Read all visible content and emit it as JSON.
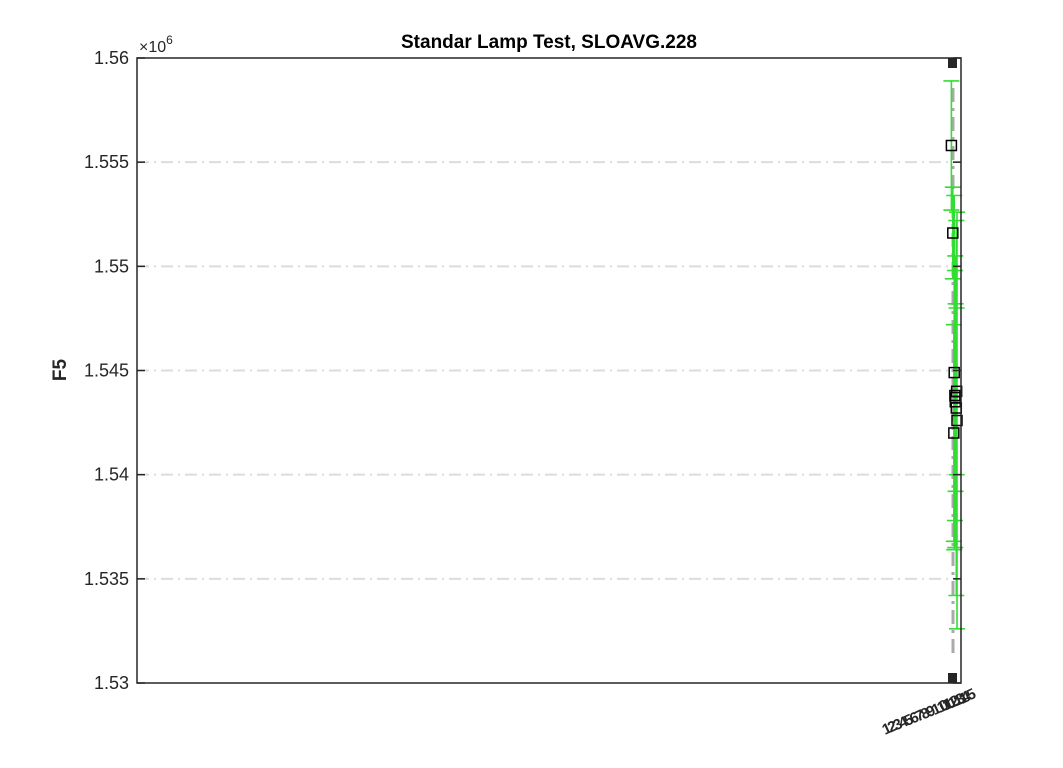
{
  "chart_data": {
    "type": "scatter",
    "title": "Standar Lamp Test, SLOAVG.228",
    "xlabel": "",
    "ylabel": "F5",
    "y_exponent_label": "×10",
    "y_exponent_power": "6",
    "ylim": [
      1.53,
      1.56
    ],
    "yticks": [
      1.53,
      1.535,
      1.54,
      1.545,
      1.55,
      1.555,
      1.56
    ],
    "ytick_labels": [
      "1.53",
      "1.535",
      "1.54",
      "1.545",
      "1.55",
      "1.555",
      "1.56"
    ],
    "xlim": [
      0,
      100
    ],
    "grid": "y dash-dot",
    "x_tick_labels": [
      "1",
      "2",
      "3",
      "4",
      "5",
      "6",
      "7",
      "8",
      "9",
      "10",
      "11",
      "12",
      "13",
      "14",
      "15"
    ],
    "colors": {
      "errorbar": "#33dd33",
      "marker": "#000000",
      "mean_line": "#aaaaaa",
      "axis": "#262626"
    },
    "series": [
      {
        "x": [
          98.4,
          98.8,
          99.2,
          99.4,
          99.6,
          99.8,
          100.0,
          99.1,
          99.5,
          99.9
        ],
        "y": [
          1.5558,
          1.5516,
          1.5449,
          1.5438,
          1.5437,
          1.5432,
          1.5426,
          1.542,
          1.5435,
          1.544
        ],
        "err": [
          0.0031,
          0.0022,
          0.0085,
          0.006,
          0.0045,
          0.009,
          0.01,
          0.0052,
          0.007,
          0.004
        ]
      }
    ]
  }
}
